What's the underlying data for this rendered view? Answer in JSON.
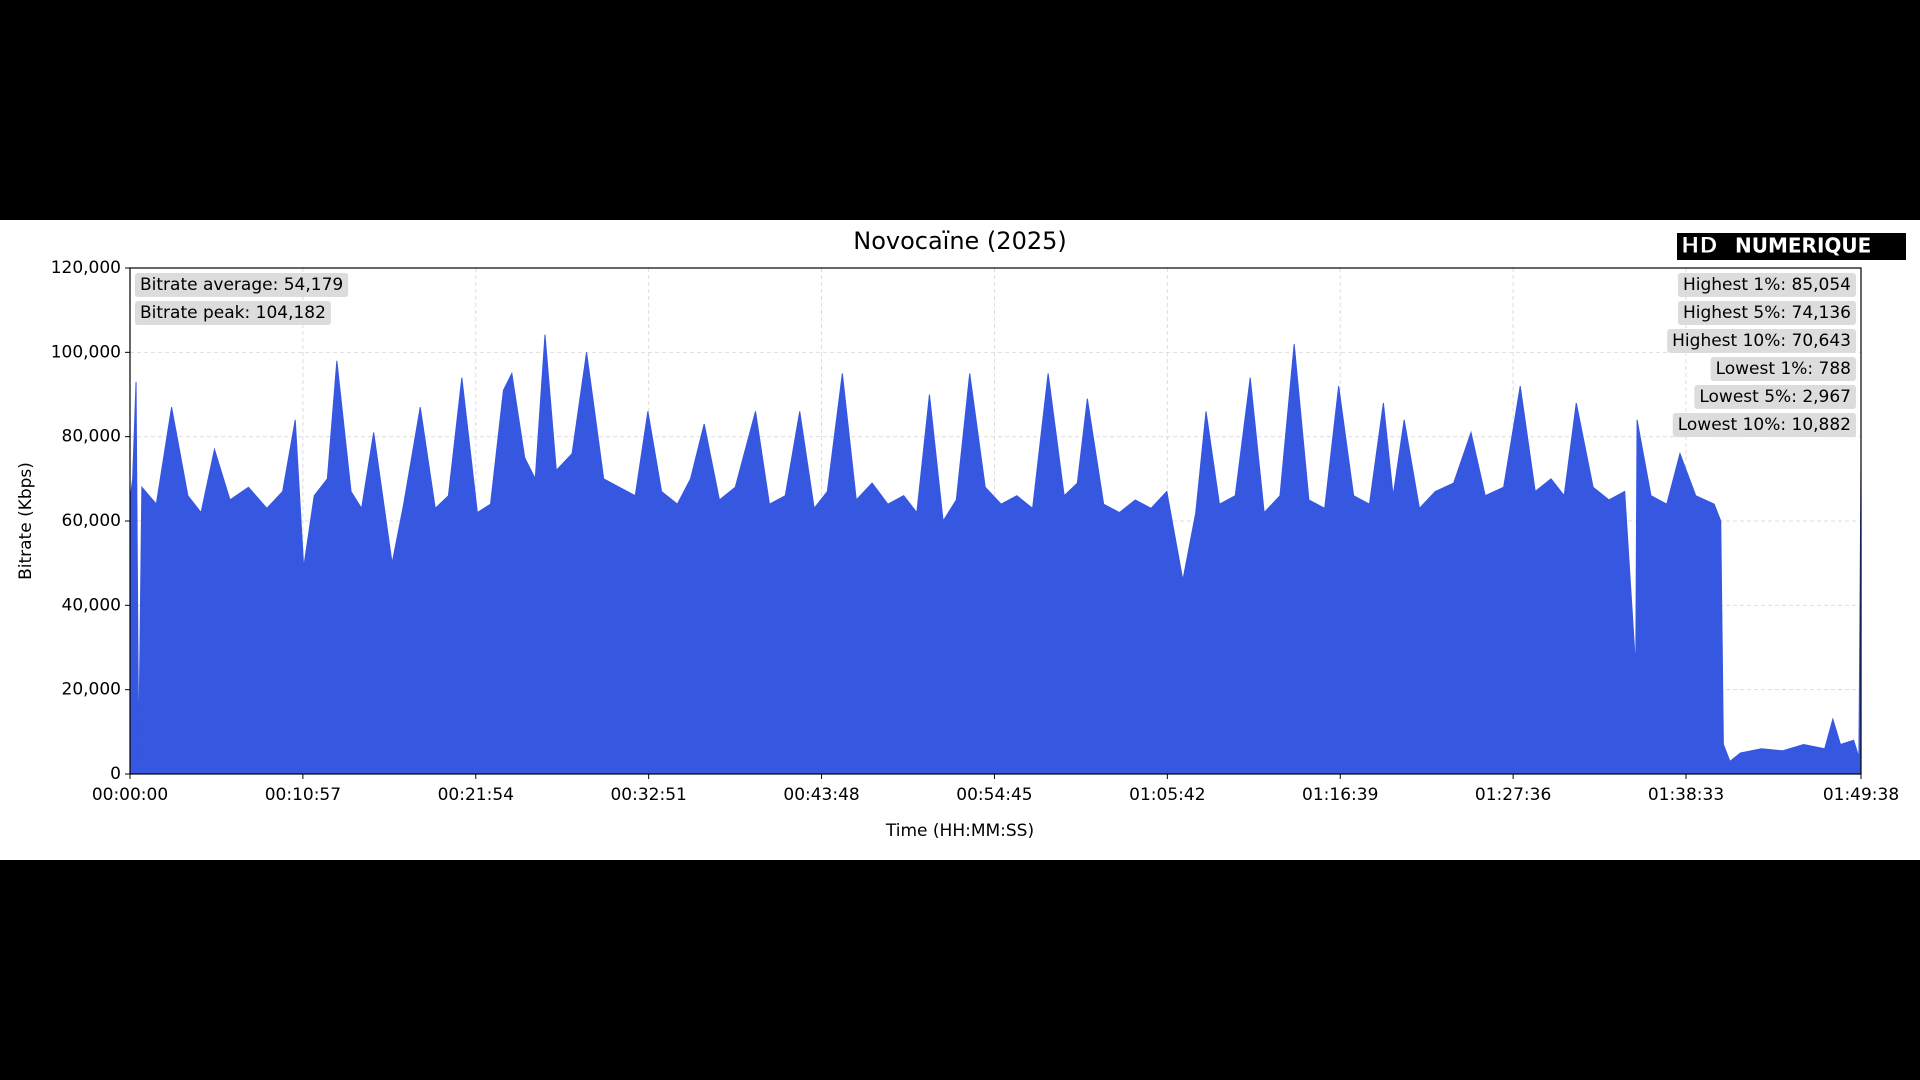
{
  "chart_data": {
    "type": "area",
    "title": "Novocaïne (2025)",
    "logo": [
      "HD",
      "NUMERIQUE"
    ],
    "x_label": "Time (HH:MM:SS)",
    "y_label": "Bitrate (Kbps)",
    "annotations_left": [
      "Bitrate average: 54,179",
      "Bitrate peak: 104,182"
    ],
    "annotations_right": [
      "Highest 1%: 85,054",
      "Highest 5%: 74,136",
      "Highest 10%: 70,643",
      "Lowest 1%: 788",
      "Lowest 5%: 2,967",
      "Lowest 10%: 10,882"
    ],
    "color": "#3657e0",
    "grid": true,
    "xlim": [
      0,
      6578
    ],
    "ylim": [
      0,
      120000
    ],
    "xticks": [
      {
        "value": 0,
        "label": "00:00:00"
      },
      {
        "value": 657,
        "label": "00:10:57"
      },
      {
        "value": 1314,
        "label": "00:21:54"
      },
      {
        "value": 1971,
        "label": "00:32:51"
      },
      {
        "value": 2628,
        "label": "00:43:48"
      },
      {
        "value": 3285,
        "label": "00:54:45"
      },
      {
        "value": 3942,
        "label": "01:05:42"
      },
      {
        "value": 4599,
        "label": "01:16:39"
      },
      {
        "value": 5256,
        "label": "01:27:36"
      },
      {
        "value": 5913,
        "label": "01:38:33"
      },
      {
        "value": 6578,
        "label": "01:49:38"
      }
    ],
    "yticks": [
      0,
      {
        "value": 20000,
        "label": "20,000"
      },
      {
        "value": 40000,
        "label": "40,000"
      },
      {
        "value": 60000,
        "label": "60,000"
      },
      {
        "value": 80000,
        "label": "80,000"
      },
      {
        "value": 100000,
        "label": "100,000"
      },
      {
        "value": 120000,
        "label": "120,000"
      }
    ],
    "x": [
      0,
      10,
      23,
      33,
      45,
      100,
      158,
      220,
      270,
      321,
      380,
      450,
      520,
      580,
      628,
      660,
      700,
      750,
      786,
      840,
      880,
      926,
      960,
      996,
      1040,
      1103,
      1160,
      1210,
      1261,
      1320,
      1370,
      1419,
      1451,
      1500,
      1540,
      1577,
      1620,
      1680,
      1735,
      1759,
      1800,
      1860,
      1920,
      1968,
      2020,
      2080,
      2130,
      2182,
      2240,
      2300,
      2377,
      2430,
      2490,
      2545,
      2600,
      2650,
      2707,
      2760,
      2820,
      2880,
      2940,
      2990,
      3038,
      3090,
      3140,
      3191,
      3250,
      3310,
      3370,
      3430,
      3489,
      3550,
      3600,
      3638,
      3700,
      3760,
      3820,
      3880,
      3940,
      4001,
      4050,
      4089,
      4140,
      4200,
      4257,
      4310,
      4370,
      4424,
      4480,
      4540,
      4593,
      4650,
      4710,
      4763,
      4800,
      4842,
      4900,
      4960,
      5030,
      5096,
      5150,
      5220,
      5283,
      5340,
      5400,
      5450,
      5496,
      5560,
      5620,
      5680,
      5722,
      5727,
      5780,
      5840,
      5890,
      5950,
      6020,
      6045,
      6055,
      6080,
      6120,
      6200,
      6280,
      6360,
      6440,
      6471,
      6500,
      6550,
      6570,
      6578
    ],
    "values": [
      65000,
      70000,
      93000,
      4000,
      68000,
      64000,
      87000,
      66000,
      62000,
      77000,
      65000,
      68000,
      63000,
      67000,
      84000,
      49000,
      66000,
      70000,
      98000,
      67000,
      63000,
      81000,
      66000,
      50000,
      64000,
      87000,
      63000,
      66000,
      94000,
      62000,
      64000,
      91000,
      95000,
      75000,
      70000,
      104182,
      72000,
      76000,
      100000,
      89000,
      70000,
      68000,
      66000,
      86000,
      67000,
      64000,
      70000,
      83000,
      65000,
      68000,
      86000,
      64000,
      66000,
      86000,
      63000,
      67000,
      95000,
      65000,
      69000,
      64000,
      66000,
      62000,
      90000,
      60000,
      65000,
      95000,
      68000,
      64000,
      66000,
      63000,
      95000,
      66000,
      69000,
      89000,
      64000,
      62000,
      65000,
      63000,
      67000,
      46000,
      62000,
      86000,
      64000,
      66000,
      94000,
      62000,
      66000,
      102000,
      65000,
      63000,
      92000,
      66000,
      64000,
      88000,
      66000,
      84000,
      63000,
      67000,
      69000,
      81000,
      66000,
      68000,
      92000,
      67000,
      70000,
      66000,
      88000,
      68000,
      65000,
      67000,
      25000,
      84000,
      66000,
      64000,
      76000,
      66000,
      64000,
      60000,
      7000,
      3000,
      5000,
      6000,
      5500,
      7000,
      6000,
      13000,
      7000,
      8000,
      4000,
      74000
    ]
  }
}
